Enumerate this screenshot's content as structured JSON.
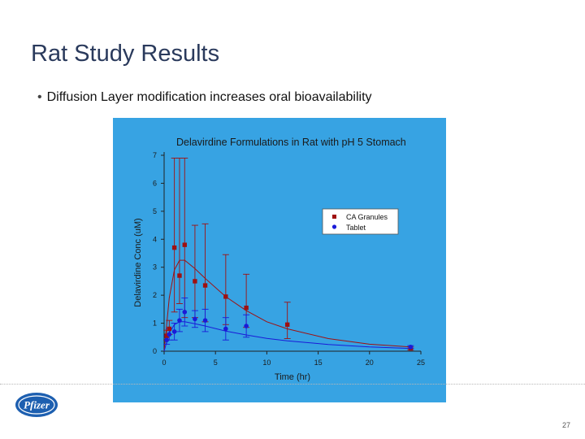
{
  "slide": {
    "title": "Rat Study Results",
    "bullet": "Diffusion Layer modification increases oral bioavailability",
    "page_number": "27",
    "logo_text": "Pfizer"
  },
  "chart_data": {
    "type": "scatter",
    "title": "Delavirdine Formulations in Rat with pH 5 Stomach",
    "xlabel": "Time (hr)",
    "ylabel": "Delavirdine Conc (uM)",
    "xlim": [
      0,
      25
    ],
    "ylim": [
      0,
      7
    ],
    "xticks": [
      0,
      5,
      10,
      15,
      20,
      25
    ],
    "yticks": [
      0,
      1,
      2,
      3,
      4,
      5,
      6,
      7
    ],
    "legend_position": "top-right",
    "background": "#37a3e3",
    "series": [
      {
        "name": "CA Granules",
        "color": "#a01010",
        "marker": "square",
        "x": [
          0.25,
          0.5,
          1,
          1.5,
          2,
          3,
          4,
          6,
          8,
          12,
          24
        ],
        "y": [
          0.55,
          0.8,
          3.7,
          2.7,
          3.8,
          2.5,
          2.35,
          1.95,
          1.55,
          0.95,
          0.1
        ],
        "err_hi": [
          0.2,
          0.3,
          3.2,
          4.2,
          3.1,
          2.0,
          2.2,
          1.5,
          1.2,
          0.8,
          0.05
        ],
        "err_lo": [
          0.15,
          0.2,
          2.3,
          1.0,
          2.6,
          1.3,
          1.3,
          1.0,
          0.7,
          0.5,
          0.05
        ],
        "fit_x": [
          0,
          0.5,
          1,
          1.5,
          2,
          3,
          4,
          6,
          8,
          10,
          12,
          16,
          20,
          24
        ],
        "fit_y": [
          0,
          1.9,
          2.9,
          3.25,
          3.25,
          2.95,
          2.6,
          1.95,
          1.45,
          1.05,
          0.8,
          0.45,
          0.25,
          0.15
        ]
      },
      {
        "name": "Tablet",
        "color": "#1a1ad8",
        "marker": "circle",
        "x": [
          0.25,
          0.5,
          1,
          1.5,
          2,
          3,
          4,
          6,
          8,
          24
        ],
        "y": [
          0.4,
          0.6,
          0.7,
          1.1,
          1.4,
          1.15,
          1.1,
          0.8,
          0.9,
          0.15
        ],
        "err_hi": [
          0.15,
          0.2,
          0.3,
          0.4,
          0.5,
          0.3,
          0.4,
          0.4,
          0.4,
          0.05
        ],
        "err_lo": [
          0.15,
          0.2,
          0.3,
          0.4,
          0.5,
          0.3,
          0.4,
          0.4,
          0.4,
          0.05
        ],
        "fit_x": [
          0,
          0.5,
          1,
          1.5,
          2,
          3,
          4,
          6,
          8,
          10,
          12,
          16,
          20,
          24
        ],
        "fit_y": [
          0,
          0.65,
          0.95,
          1.05,
          1.05,
          0.98,
          0.9,
          0.72,
          0.58,
          0.46,
          0.37,
          0.24,
          0.15,
          0.1
        ]
      }
    ]
  }
}
